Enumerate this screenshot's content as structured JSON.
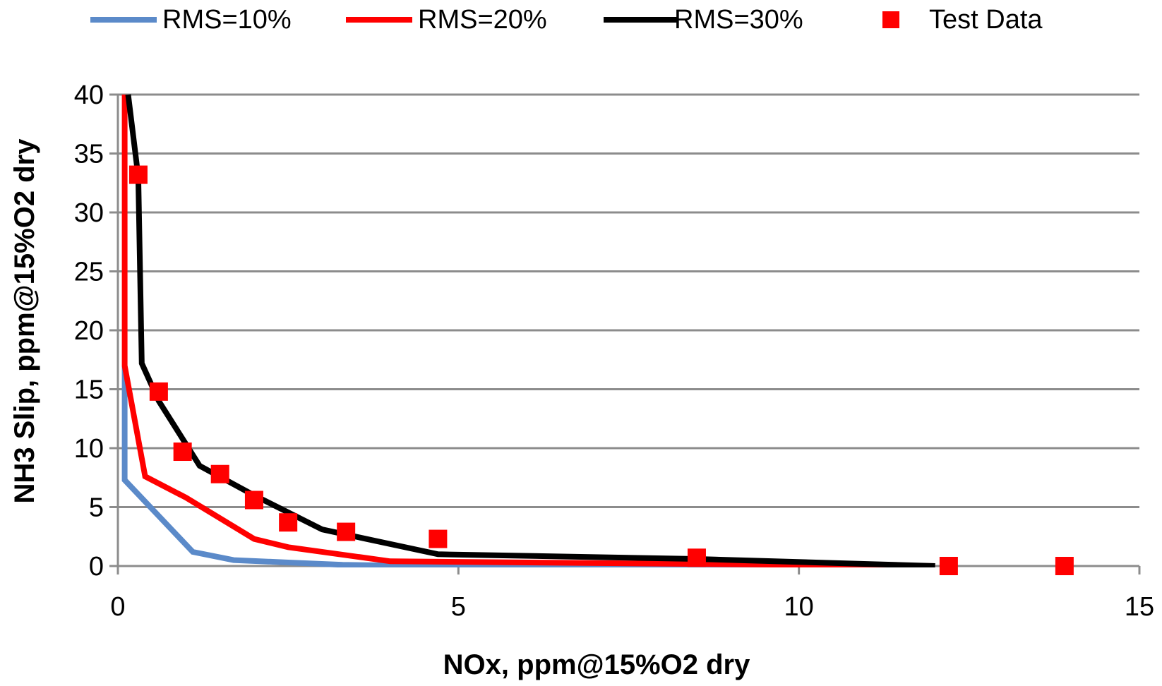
{
  "chart_data": {
    "type": "line",
    "title": "",
    "xlabel": "NOx, ppm@15%O2 dry",
    "ylabel": "NH3 Slip, ppm@15%O2 dry",
    "xlim": [
      0,
      15
    ],
    "ylim": [
      0,
      40
    ],
    "x_ticks": [
      0,
      5,
      10,
      15
    ],
    "y_ticks": [
      0,
      5,
      10,
      15,
      20,
      25,
      30,
      35,
      40
    ],
    "x_tick_labels": [
      "0",
      "5",
      "10",
      "15"
    ],
    "y_tick_labels": [
      "0",
      "5",
      "10",
      "15",
      "20",
      "25",
      "30",
      "35",
      "40"
    ],
    "grid": "horizontal",
    "legend_position": "top",
    "series": [
      {
        "name": "RMS=10%",
        "kind": "line",
        "color": "#5b8ac9",
        "points": [
          [
            0.1,
            17.0
          ],
          [
            0.1,
            7.3
          ],
          [
            1.1,
            1.2
          ],
          [
            1.7,
            0.5
          ],
          [
            2.5,
            0.3
          ],
          [
            3.3,
            0.1
          ],
          [
            4.0,
            0.05
          ],
          [
            12.0,
            0.0
          ]
        ]
      },
      {
        "name": "RMS=20%",
        "kind": "line",
        "color": "#ff0000",
        "points": [
          [
            0.1,
            40.0
          ],
          [
            0.1,
            17.0
          ],
          [
            0.4,
            7.6
          ],
          [
            1.0,
            5.8
          ],
          [
            2.0,
            2.3
          ],
          [
            2.5,
            1.6
          ],
          [
            4.0,
            0.4
          ],
          [
            12.0,
            0.0
          ]
        ]
      },
      {
        "name": "RMS=30%",
        "kind": "line",
        "color": "#000000",
        "points": [
          [
            0.15,
            40.0
          ],
          [
            0.3,
            33.0
          ],
          [
            0.35,
            17.2
          ],
          [
            0.6,
            14.0
          ],
          [
            1.2,
            8.5
          ],
          [
            2.0,
            6.0
          ],
          [
            3.0,
            3.1
          ],
          [
            4.7,
            1.0
          ],
          [
            8.5,
            0.6
          ],
          [
            12.0,
            0.0
          ]
        ]
      },
      {
        "name": "Test Data",
        "kind": "scatter",
        "color": "#ff0000",
        "points": [
          [
            0.3,
            33.2
          ],
          [
            0.6,
            14.8
          ],
          [
            0.95,
            9.7
          ],
          [
            1.5,
            7.8
          ],
          [
            2.0,
            5.6
          ],
          [
            2.5,
            3.7
          ],
          [
            3.35,
            2.9
          ],
          [
            4.7,
            2.3
          ],
          [
            8.5,
            0.7
          ],
          [
            12.2,
            0.0
          ],
          [
            13.9,
            0.0
          ]
        ]
      }
    ]
  }
}
